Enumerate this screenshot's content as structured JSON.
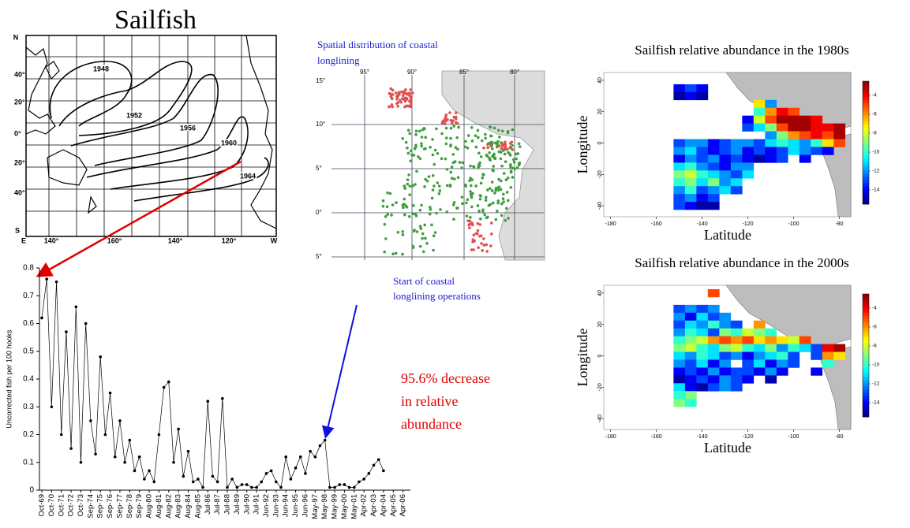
{
  "title": "Sailfish",
  "pacific_map": {
    "compass": {
      "north": "N",
      "south": "S",
      "east": "E",
      "west": "W"
    },
    "lat_labels": [
      "40°",
      "20°",
      "0°",
      "20°",
      "40°"
    ],
    "lon_labels": [
      "140°",
      "160°",
      "140°",
      "120°"
    ],
    "contours": [
      "1948",
      "1952",
      "1956",
      "1960",
      "1964"
    ]
  },
  "longline_map": {
    "title_lines": [
      "Spatial distribution of coastal",
      "longlining"
    ],
    "lon_labels": [
      "95°",
      "90°",
      "85°",
      "80°"
    ],
    "lat_labels": [
      "15°",
      "10°",
      "5°",
      "0°",
      "5°"
    ]
  },
  "annotations": {
    "start": [
      "Start of coastal",
      "longlining operations"
    ],
    "decrease": [
      "95.6% decrease",
      "in relative",
      "abundance"
    ]
  },
  "chart_data": [
    {
      "type": "line",
      "ylabel": "Uncorrected fish per 100 hooks",
      "color": "#000000",
      "categories": [
        "Oct-69",
        null,
        "Oct-70",
        null,
        "Oct-71",
        null,
        "Oct-72",
        null,
        "Oct-73",
        null,
        "Sep-74",
        null,
        "Sep-75",
        null,
        "Sep-76",
        null,
        "Sep-77",
        null,
        "Sep-78",
        null,
        "Sep-79",
        null,
        "Aug-80",
        null,
        "Aug-81",
        null,
        "Aug-82",
        null,
        "Aug-83",
        null,
        "Aug-84",
        null,
        "Aug-85",
        null,
        "Jul-86",
        null,
        "Jul-87",
        null,
        "Jul-88",
        null,
        "Jul-89",
        null,
        "Jul-90",
        null,
        "Jul-91",
        null,
        "Jun-92",
        null,
        "Jun-93",
        null,
        "Jun-94",
        null,
        "Jun-95",
        null,
        "Jun-96",
        null,
        "May-97",
        null,
        "May-98",
        null,
        "May-99",
        null,
        "May-00",
        null,
        "May-01",
        null,
        "Apr-02",
        null,
        "Apr-03",
        null,
        "Apr-04",
        null,
        "Apr-05",
        null,
        "Apr-06",
        null
      ],
      "values": [
        0.62,
        0.76,
        0.3,
        0.75,
        0.2,
        0.57,
        0.15,
        0.66,
        0.1,
        0.6,
        0.25,
        0.13,
        0.48,
        0.2,
        0.35,
        0.12,
        0.25,
        0.1,
        0.18,
        0.07,
        0.12,
        0.04,
        0.07,
        0.03,
        0.2,
        0.37,
        0.39,
        0.1,
        0.22,
        0.05,
        0.14,
        0.03,
        0.04,
        0.01,
        0.32,
        0.05,
        0.03,
        0.33,
        0.01,
        0.04,
        0.01,
        0.02,
        0.02,
        0.01,
        0.01,
        0.03,
        0.06,
        0.07,
        0.03,
        0.01,
        0.12,
        0.04,
        0.08,
        0.12,
        0.06,
        0.14,
        0.12,
        0.16,
        0.18,
        0.01,
        0.01,
        0.02,
        0.02,
        0.01,
        0.01,
        0.03,
        0.04,
        0.06,
        0.09,
        0.11,
        0.07,
        null,
        null,
        null,
        null,
        null
      ],
      "ylim": [
        0,
        0.8
      ],
      "yticks": [
        0,
        0.1,
        0.2,
        0.3,
        0.4,
        0.5,
        0.6,
        0.7,
        0.8
      ]
    },
    {
      "type": "heatmap",
      "title": "Sailfish relative abundance in the 1980s",
      "xlabel": "Latitude",
      "ylabel": "Longitude",
      "colormap": "jet",
      "x": [
        -150,
        -145,
        -140,
        -135,
        -130,
        -125,
        -120,
        -115,
        -110,
        -105,
        -100,
        -95,
        -90,
        -85,
        -80
      ],
      "y": [
        40,
        35,
        30,
        25,
        20,
        15,
        10,
        5,
        0,
        -5,
        -10,
        -15,
        -20,
        -25,
        -30,
        -35,
        -40
      ],
      "values": [
        [
          null,
          null,
          null,
          null,
          null,
          null,
          null,
          null,
          null,
          null,
          null,
          null,
          null,
          null,
          null
        ],
        [
          -14,
          -13,
          -14,
          null,
          null,
          null,
          null,
          null,
          null,
          null,
          null,
          null,
          null,
          null,
          null
        ],
        [
          -15,
          -14,
          -15,
          null,
          null,
          null,
          null,
          null,
          null,
          null,
          null,
          null,
          null,
          null,
          null
        ],
        [
          null,
          null,
          null,
          null,
          null,
          null,
          null,
          -7,
          -12,
          null,
          null,
          null,
          null,
          null,
          null
        ],
        [
          null,
          null,
          null,
          null,
          null,
          null,
          null,
          -10,
          -6,
          -4,
          -5,
          null,
          null,
          null,
          null
        ],
        [
          null,
          null,
          null,
          null,
          null,
          null,
          -14,
          -8,
          -5,
          -3,
          -3,
          -3,
          -4,
          null,
          null
        ],
        [
          null,
          null,
          null,
          null,
          null,
          null,
          -13,
          -11,
          -9,
          -5,
          -3,
          -3,
          -4,
          -4,
          -3
        ],
        [
          null,
          null,
          null,
          null,
          null,
          null,
          null,
          null,
          -12,
          -9,
          -6,
          -5,
          -4,
          -5,
          -3
        ],
        [
          -13,
          -12,
          -12,
          -14,
          -13,
          -12,
          -12,
          -13,
          -11,
          -10,
          -11,
          -12,
          -10,
          -7,
          -5
        ],
        [
          -12,
          -11,
          -13,
          -14,
          -13,
          -12,
          -14,
          -13,
          -14,
          -13,
          -11,
          -12,
          -13,
          -14,
          null
        ],
        [
          -14,
          -12,
          -13,
          -12,
          -14,
          -13,
          -14,
          -15,
          -14,
          -13,
          null,
          -14,
          null,
          null,
          null
        ],
        [
          -11,
          -10,
          -12,
          -13,
          -14,
          -12,
          -12,
          null,
          null,
          null,
          null,
          null,
          null,
          null,
          null
        ],
        [
          -9,
          -8,
          -10,
          -11,
          -12,
          -13,
          -11,
          null,
          null,
          null,
          null,
          null,
          null,
          null,
          null
        ],
        [
          -10,
          -9,
          -11,
          -9,
          -12,
          -11,
          null,
          null,
          null,
          null,
          null,
          null,
          null,
          null,
          null
        ],
        [
          -12,
          -10,
          -13,
          -12,
          -11,
          -13,
          null,
          null,
          null,
          null,
          null,
          null,
          null,
          null,
          null
        ],
        [
          -13,
          -12,
          -14,
          -13,
          null,
          null,
          null,
          null,
          null,
          null,
          null,
          null,
          null,
          null,
          null
        ],
        [
          -13,
          -14,
          -15,
          -15,
          null,
          null,
          null,
          null,
          null,
          null,
          null,
          null,
          null,
          null,
          null
        ]
      ],
      "xlim": [
        -183,
        -75
      ],
      "ylim": [
        -47,
        45
      ],
      "xticks": [
        -180,
        -160,
        -140,
        -120,
        -100,
        -80
      ],
      "yticks": [
        -40,
        -20,
        0,
        20,
        40
      ],
      "clim": [
        -15.5,
        -2.5
      ],
      "cticks": [
        -4,
        -6,
        -8,
        -10,
        -12,
        -14
      ]
    },
    {
      "type": "heatmap",
      "title": "Sailfish relative abundance in the 2000s",
      "xlabel": "Latitude",
      "ylabel": "Longitude",
      "colormap": "jet",
      "x": [
        -150,
        -145,
        -140,
        -135,
        -130,
        -125,
        -120,
        -115,
        -110,
        -105,
        -100,
        -95,
        -90,
        -85,
        -80
      ],
      "y": [
        40,
        35,
        30,
        25,
        20,
        15,
        10,
        5,
        0,
        -5,
        -10,
        -15,
        -20,
        -25,
        -30,
        -35,
        -40
      ],
      "values": [
        [
          null,
          null,
          null,
          -5,
          null,
          null,
          null,
          null,
          null,
          null,
          null,
          null,
          null,
          null,
          null
        ],
        [
          null,
          null,
          null,
          null,
          null,
          null,
          null,
          null,
          null,
          null,
          null,
          null,
          null,
          null,
          null
        ],
        [
          -13,
          -12,
          -13,
          -12,
          null,
          null,
          null,
          null,
          null,
          null,
          null,
          null,
          null,
          null,
          null
        ],
        [
          -12,
          -14,
          -11,
          -13,
          -12,
          null,
          null,
          null,
          null,
          null,
          null,
          null,
          null,
          null,
          null
        ],
        [
          -13,
          -11,
          -12,
          -10,
          -12,
          -13,
          null,
          -6,
          null,
          null,
          null,
          null,
          null,
          null,
          null
        ],
        [
          -12,
          -10,
          -11,
          -13,
          -9,
          -10,
          -8,
          -9,
          -10,
          null,
          null,
          null,
          null,
          null,
          null
        ],
        [
          -10,
          -9,
          -8,
          -6,
          -5,
          -6,
          -5,
          -7,
          -6,
          -7,
          -8,
          -5,
          null,
          null,
          null
        ],
        [
          -9,
          -8,
          -10,
          -11,
          -9,
          -8,
          -10,
          -11,
          -9,
          -12,
          -10,
          -11,
          -13,
          -4,
          -3
        ],
        [
          -11,
          -12,
          -10,
          -11,
          -13,
          -12,
          -14,
          -12,
          -11,
          -10,
          -13,
          null,
          -13,
          -6,
          -7
        ],
        [
          -12,
          -13,
          -11,
          -14,
          -12,
          null,
          -13,
          -11,
          -14,
          -12,
          -13,
          null,
          null,
          -10,
          null
        ],
        [
          -14,
          -13,
          -14,
          -12,
          -14,
          -13,
          -13,
          -14,
          -12,
          -14,
          null,
          null,
          -14,
          null,
          null
        ],
        [
          -15,
          -14,
          -13,
          -14,
          -12,
          -13,
          -14,
          null,
          -15,
          null,
          null,
          null,
          null,
          null,
          null
        ],
        [
          -11,
          -14,
          -15,
          -13,
          -12,
          -13,
          null,
          null,
          null,
          null,
          null,
          null,
          null,
          null,
          null
        ],
        [
          -10,
          -9,
          null,
          null,
          null,
          null,
          null,
          null,
          null,
          null,
          null,
          null,
          null,
          null,
          null
        ],
        [
          -9,
          -10,
          null,
          null,
          null,
          null,
          null,
          null,
          null,
          null,
          null,
          null,
          null,
          null,
          null
        ],
        [
          null,
          null,
          null,
          null,
          null,
          null,
          null,
          null,
          null,
          null,
          null,
          null,
          null,
          null,
          null
        ],
        [
          null,
          null,
          null,
          null,
          null,
          null,
          null,
          null,
          null,
          null,
          null,
          null,
          null,
          null,
          null
        ]
      ],
      "xlim": [
        -183,
        -75
      ],
      "ylim": [
        -47,
        45
      ],
      "xticks": [
        -180,
        -160,
        -140,
        -120,
        -100,
        -80
      ],
      "yticks": [
        -40,
        -20,
        0,
        20,
        40
      ],
      "clim": [
        -15.5,
        -2.5
      ],
      "cticks": [
        -4,
        -6,
        -8,
        -10,
        -12,
        -14
      ]
    }
  ]
}
